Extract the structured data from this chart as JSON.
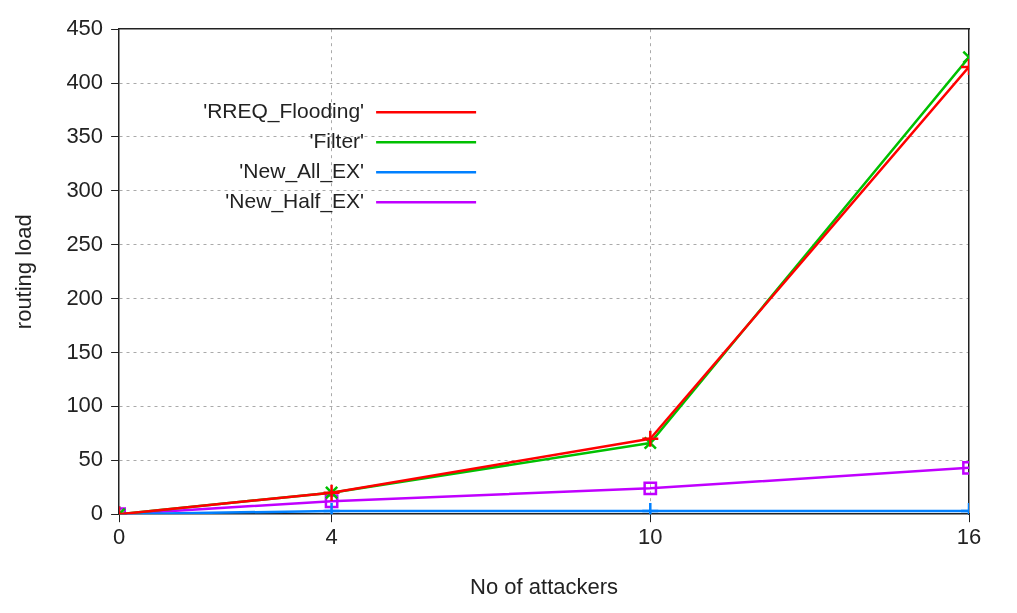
{
  "chart_data": {
    "type": "line",
    "xlabel": "No of attackers",
    "ylabel": "routing load",
    "x": [
      0,
      4,
      10,
      16
    ],
    "series": [
      {
        "name": "'RREQ_Flooding'",
        "color": "#ff0000",
        "marker": "cross",
        "values": [
          0,
          20,
          70,
          415
        ]
      },
      {
        "name": "'Filter'",
        "color": "#00c000",
        "marker": "x",
        "values": [
          0,
          20,
          66,
          424
        ]
      },
      {
        "name": "'New_All_EX'",
        "color": "#0080ff",
        "marker": "cross",
        "values": [
          0,
          3,
          3,
          3
        ]
      },
      {
        "name": "'New_Half_EX'",
        "color": "#c000ff",
        "marker": "square",
        "values": [
          0,
          12,
          24,
          43
        ]
      }
    ],
    "xlim": [
      0,
      16
    ],
    "xticks": [
      0,
      4,
      10,
      16
    ],
    "ylim": [
      0,
      450
    ],
    "yticks": [
      0,
      50,
      100,
      150,
      200,
      250,
      300,
      350,
      400,
      450
    ],
    "grid": true,
    "legend": "top left",
    "line_style": "solid"
  }
}
